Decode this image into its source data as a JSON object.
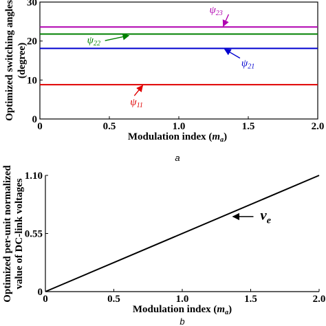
{
  "chart_data": [
    {
      "type": "line",
      "panel_label": "a",
      "xlabel_main": "Modulation index (",
      "xlabel_var": "m",
      "xlabel_sub": "a",
      "xlabel_end": ")",
      "ylabel_line1": "Optimized switching angles",
      "ylabel_line2": "(degree)",
      "xlim": [
        0,
        2.0
      ],
      "ylim": [
        0,
        30
      ],
      "xticks": [
        "0",
        "0.5",
        "1.0",
        "1.5",
        "2.0"
      ],
      "xtick_values": [
        0,
        0.5,
        1.0,
        1.5,
        2.0
      ],
      "yticks": [
        "0",
        "10",
        "20",
        "30"
      ],
      "ytick_values": [
        0,
        10,
        20,
        30
      ],
      "series": [
        {
          "name": "ψ23",
          "symbol": "ψ",
          "sub": "23",
          "color": "#b000b0",
          "x": [
            0,
            2.0
          ],
          "y": [
            23.6,
            23.6
          ],
          "label_at": [
            1.22,
            27.2
          ],
          "arrow_to": [
            1.32,
            23.8
          ]
        },
        {
          "name": "ψ22",
          "symbol": "ψ",
          "sub": "22",
          "color": "#008000",
          "x": [
            0,
            2.0
          ],
          "y": [
            21.8,
            21.8
          ],
          "label_at": [
            0.34,
            19.4
          ],
          "arrow_to": [
            0.64,
            21.4
          ]
        },
        {
          "name": "ψ21",
          "symbol": "ψ",
          "sub": "21",
          "color": "#0000d0",
          "x": [
            0,
            2.0
          ],
          "y": [
            18.1,
            18.1
          ],
          "label_at": [
            1.45,
            13.5
          ],
          "arrow_to": [
            1.33,
            17.9
          ]
        },
        {
          "name": "ψ11",
          "symbol": "ψ",
          "sub": "11",
          "color": "#e00000",
          "x": [
            0,
            2.0
          ],
          "y": [
            8.8,
            8.8
          ],
          "label_at": [
            0.65,
            3.5
          ],
          "arrow_to": [
            0.74,
            8.6
          ]
        }
      ]
    },
    {
      "type": "line",
      "panel_label": "b",
      "xlabel_main": "Modulation index (",
      "xlabel_var": "m",
      "xlabel_sub": "a",
      "xlabel_end": ")",
      "ylabel_line1": "Optimized per-unit normalized",
      "ylabel_line2": "value of DC-link voltages",
      "xlim": [
        0,
        2.0
      ],
      "ylim": [
        0,
        1.1
      ],
      "xticks": [
        "0",
        "0.5",
        "1.0",
        "1.5",
        "2.0"
      ],
      "xtick_values": [
        0,
        0.5,
        1.0,
        1.5,
        2.0
      ],
      "yticks": [
        "0",
        "0.55",
        "1.10"
      ],
      "ytick_values": [
        0,
        0.55,
        1.1
      ],
      "series": [
        {
          "name": "ve",
          "symbol": "v",
          "sub": "e",
          "color": "#000000",
          "x": [
            0,
            2.0
          ],
          "y": [
            0,
            1.1
          ],
          "label_at": [
            1.57,
            0.68
          ],
          "arrow_from": [
            1.52,
            0.71
          ],
          "arrow_to": [
            1.37,
            0.71
          ]
        }
      ]
    }
  ]
}
